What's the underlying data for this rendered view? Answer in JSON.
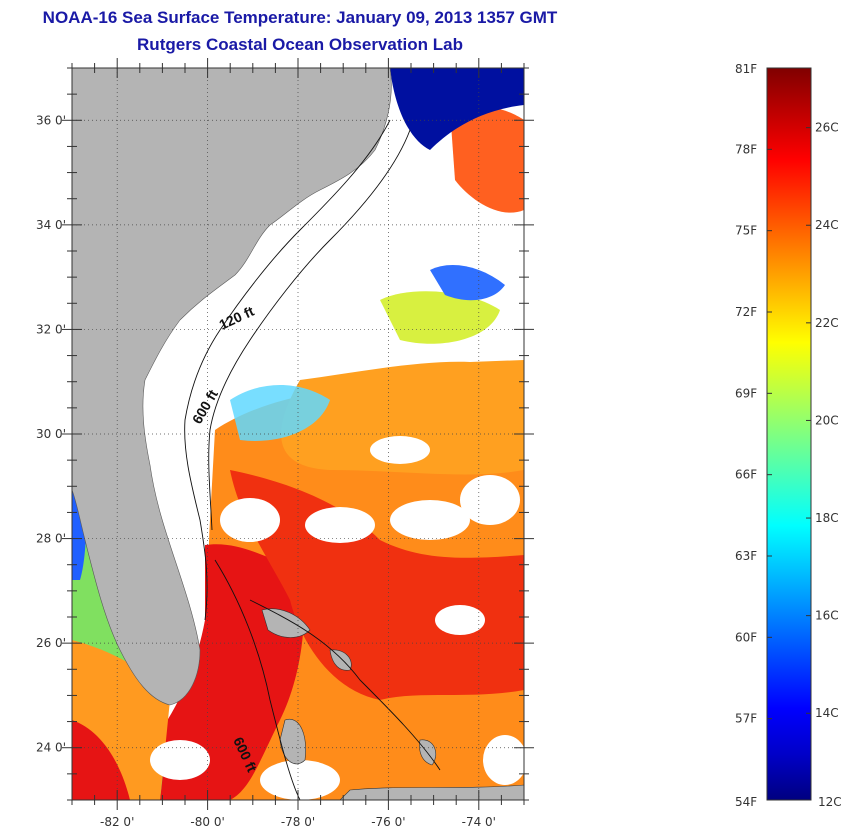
{
  "header": {
    "title": "NOAA-16 Sea Surface Temperature:  January 09, 2013 1357 GMT",
    "subtitle": "Rutgers Coastal Ocean Observation Lab"
  },
  "map": {
    "lat_range": [
      23.0,
      37.0
    ],
    "lon_range": [
      -83.0,
      -73.0
    ],
    "lat_labels": [
      "36 0'",
      "34 0'",
      "32 0'",
      "30 0'",
      "28 0'",
      "26 0'",
      "24 0'"
    ],
    "lat_values": [
      36,
      34,
      32,
      30,
      28,
      26,
      24
    ],
    "lon_labels": [
      "-82 0'",
      "-80 0'",
      "-78 0'",
      "-76 0'",
      "-74 0'"
    ],
    "lon_values": [
      -82,
      -80,
      -78,
      -76,
      -74
    ],
    "contour_labels": [
      "120 ft",
      "600 ft",
      "600 ft"
    ],
    "land_color": "#b4b4b4",
    "cloud_color": "#ffffff"
  },
  "colorbar": {
    "top_label": "81F",
    "bottom_f": "54F",
    "bottom_c": "12C",
    "f_labels": [
      "78F",
      "75F",
      "72F",
      "69F",
      "66F",
      "63F",
      "60F",
      "57F"
    ],
    "f_values": [
      78,
      75,
      72,
      69,
      66,
      63,
      60,
      57
    ],
    "c_labels": [
      "26C",
      "24C",
      "22C",
      "20C",
      "18C",
      "16C",
      "14C"
    ],
    "c_values": [
      26,
      24,
      22,
      20,
      18,
      16,
      14
    ],
    "range_f": [
      54,
      81
    ],
    "colors": [
      "#000080",
      "#0000c8",
      "#0000ff",
      "#0040ff",
      "#0080ff",
      "#00c0ff",
      "#00ffff",
      "#40ffc0",
      "#80ff80",
      "#c0ff40",
      "#ffff00",
      "#ffc000",
      "#ff8000",
      "#ff4000",
      "#ff0000",
      "#c00000",
      "#800000"
    ]
  }
}
